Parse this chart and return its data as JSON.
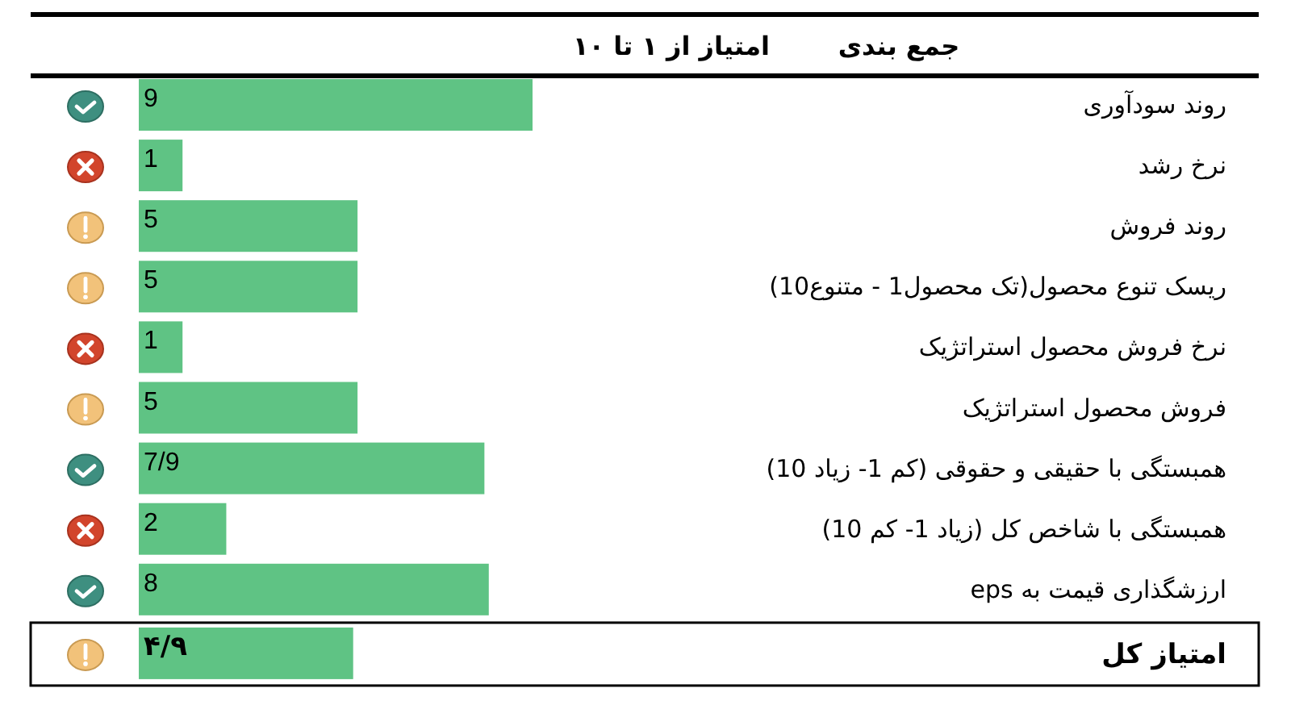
{
  "chart_data": {
    "type": "bar",
    "orientation": "horizontal",
    "xlabel": "امتیاز از ۱ تا ۱۰",
    "ylabel": "جمع بندی",
    "categories": [
      "روند سودآوری",
      "نرخ رشد",
      "روند فروش",
      "ریسک تنوع محصول(تک محصول1 - متنوع10)",
      "نرخ فروش محصول استراتژیک",
      "فروش محصول استراتژیک",
      "همبستگی با حقیقی و حقوقی (کم 1- زیاد 10)",
      "همبستگی با شاخص کل (زیاد 1- کم 10)",
      "ارزشگذاری قیمت به eps",
      "امتیاز کل"
    ],
    "values": [
      9,
      1,
      5,
      5,
      1,
      5,
      7.9,
      2,
      8,
      4.9
    ],
    "value_labels": [
      "9",
      "1",
      "5",
      "5",
      "1",
      "5",
      "7/9",
      "2",
      "8",
      "۴/۹"
    ],
    "color": "#5fc384",
    "tick_labels": "y"
  }
}
